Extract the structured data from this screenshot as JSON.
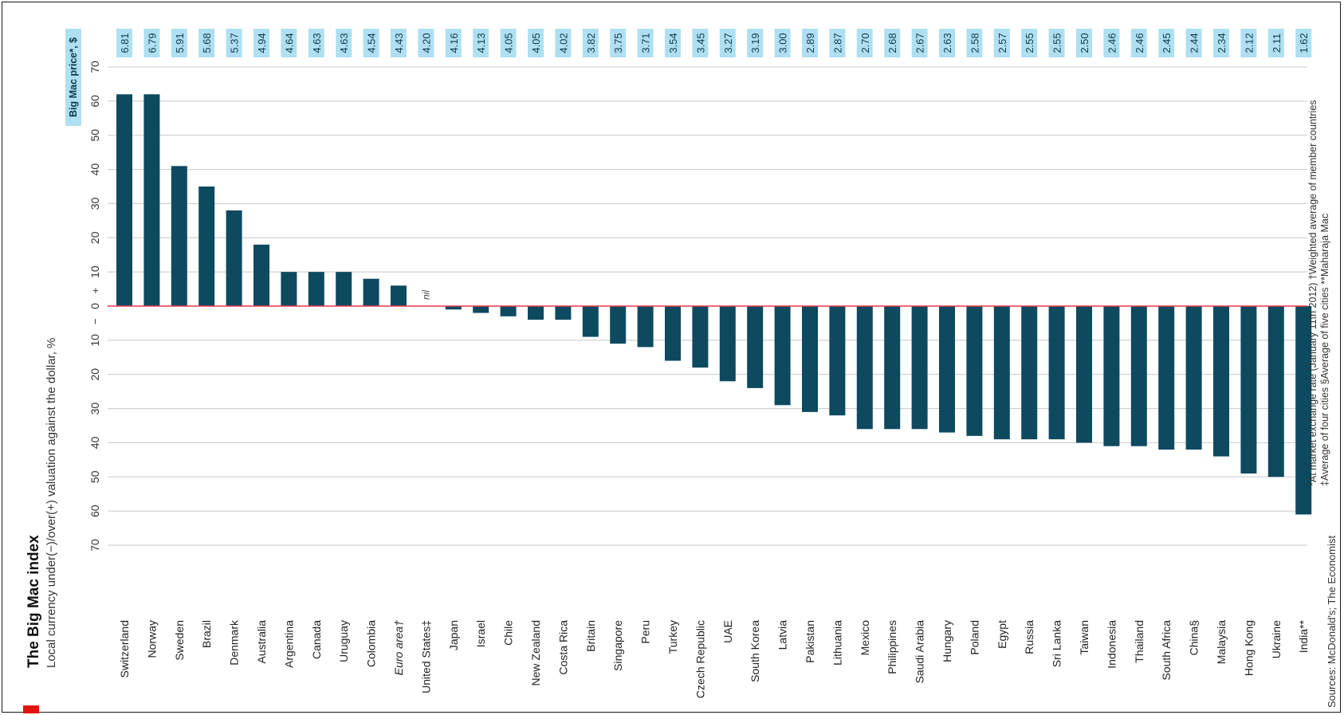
{
  "title": "The Big Mac index",
  "subtitle": "Local currency under(−)/over(+) valuation against the dollar, %",
  "price_label": "Big Mac price*, $",
  "sign_minus": "−",
  "sign_plus": "+",
  "nil_label": "nil",
  "sources": "Sources: McDonald's; The Economist",
  "notes": {
    "line1": "*At market exchange rate (January 11th 2012)   †Weighted average of member countries",
    "line2": "‡Average of four cities   §Average of five cities   **Maharaja Mac"
  },
  "colors": {
    "bar": "#0d4a5f",
    "zero_line": "#e8384f",
    "price_box": "#aee0f2",
    "grid": "#c8c8c8"
  },
  "chart_data": {
    "type": "bar",
    "title": "The Big Mac index",
    "ylabel": "Local currency under(−)/over(+) valuation against the dollar, %",
    "ylim": [
      -70,
      70
    ],
    "yticks": [
      70,
      60,
      50,
      40,
      30,
      20,
      10,
      0,
      10,
      20,
      30,
      40,
      50,
      60,
      70
    ],
    "grid": true,
    "categories": [
      "Switzerland",
      "Norway",
      "Sweden",
      "Brazil",
      "Denmark",
      "Australia",
      "Argentina",
      "Canada",
      "Uruguay",
      "Colombia",
      "Euro area†",
      "United States‡",
      "Japan",
      "Israel",
      "Chile",
      "New Zealand",
      "Costa Rica",
      "Britain",
      "Singapore",
      "Peru",
      "Turkey",
      "Czech Republic",
      "UAE",
      "South Korea",
      "Latvia",
      "Pakistan",
      "Lithuania",
      "Mexico",
      "Philippines",
      "Saudi Arabia",
      "Hungary",
      "Poland",
      "Egypt",
      "Russia",
      "Sri Lanka",
      "Taiwan",
      "Indonesia",
      "Thailand",
      "South Africa",
      "China§",
      "Malaysia",
      "Hong Kong",
      "Ukraine",
      "India**"
    ],
    "values": [
      62,
      62,
      41,
      35,
      28,
      18,
      10,
      10,
      10,
      8,
      6,
      0,
      -1,
      -2,
      -3,
      -4,
      -4,
      -9,
      -11,
      -12,
      -16,
      -18,
      -22,
      -24,
      -29,
      -31,
      -32,
      -36,
      -36,
      -36,
      -37,
      -38,
      -39,
      -39,
      -39,
      -40,
      -41,
      -41,
      -42,
      -42,
      -44,
      -49,
      -50,
      -61
    ],
    "prices": [
      "6.81",
      "6.79",
      "5.91",
      "5.68",
      "5.37",
      "4.94",
      "4.64",
      "4.63",
      "4.63",
      "4.54",
      "4.43",
      "4.20",
      "4.16",
      "4.13",
      "4.05",
      "4.05",
      "4.02",
      "3.82",
      "3.75",
      "3.71",
      "3.54",
      "3.45",
      "3.27",
      "3.19",
      "3.00",
      "2.89",
      "2.87",
      "2.70",
      "2.68",
      "2.67",
      "2.63",
      "2.58",
      "2.57",
      "2.55",
      "2.55",
      "2.50",
      "2.46",
      "2.46",
      "2.45",
      "2.44",
      "2.34",
      "2.12",
      "2.11",
      "1.62"
    ],
    "italic_categories": [
      "Euro area†"
    ]
  }
}
